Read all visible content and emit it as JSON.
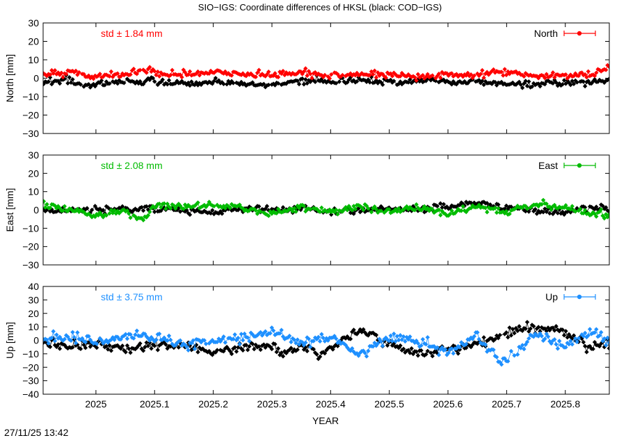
{
  "title": "SIO−IGS: Coordinate differences of HKSL (black: COD−IGS)",
  "timestamp": "27/11/25 13:42",
  "chart_data": {
    "type": "scatter",
    "title": "SIO−IGS: Coordinate differences of HKSL (black: COD−IGS)",
    "xlabel": "YEAR",
    "xlim": [
      2024.91,
      2025.875
    ],
    "xticks": [
      "2025",
      "2025.1",
      "2025.2",
      "2025.3",
      "2025.4",
      "2025.5",
      "2025.6",
      "2025.7",
      "2025.8"
    ],
    "reference_series_color": "#000000",
    "grid": false,
    "legend_position": "top-right",
    "panels": [
      {
        "component": "north",
        "ylabel": "North [mm]",
        "legend": "North",
        "color": "#ff0000",
        "std_label": "std ± 1.84 mm",
        "ylim": [
          -30,
          30
        ],
        "yticks": [
          "30",
          "20",
          "10",
          "0",
          "−10",
          "−20",
          "−30"
        ],
        "series": [
          {
            "x": [
              2024.912,
              2024.95,
              2025.0,
              2025.05,
              2025.08,
              2025.12,
              2025.2,
              2025.25,
              2025.3,
              2025.33,
              2025.4,
              2025.45,
              2025.5,
              2025.55,
              2025.6,
              2025.65,
              2025.69,
              2025.72,
              2025.8,
              2025.84,
              2025.873
            ],
            "y": [
              2,
              3,
              1,
              2,
              5,
              2,
              3,
              2,
              2,
              3,
              1,
              2,
              2,
              1,
              2,
              1,
              4,
              2,
              1,
              2,
              6
            ]
          },
          {
            "x": [
              2024.912,
              2024.95,
              2024.99,
              2025.04,
              2025.1,
              2025.15,
              2025.2,
              2025.25,
              2025.3,
              2025.35,
              2025.4,
              2025.45,
              2025.5,
              2025.55,
              2025.6,
              2025.65,
              2025.7,
              2025.75,
              2025.8,
              2025.84,
              2025.873
            ],
            "y": [
              -2,
              -1,
              -4,
              -2,
              -2,
              -3,
              -2,
              -3,
              -4,
              -1,
              -2,
              -1,
              -2,
              -1,
              -2,
              -2,
              -3,
              -3,
              -2,
              -2,
              -1
            ]
          }
        ]
      },
      {
        "component": "east",
        "ylabel": "East [mm]",
        "legend": "East",
        "color": "#00bb00",
        "std_label": "std ± 2.08 mm",
        "ylim": [
          -30,
          30
        ],
        "yticks": [
          "30",
          "20",
          "10",
          "0",
          "−10",
          "−20",
          "−30"
        ],
        "series": [
          {
            "x": [
              2024.912,
              2024.95,
              2025.0,
              2025.05,
              2025.08,
              2025.1,
              2025.15,
              2025.2,
              2025.25,
              2025.3,
              2025.35,
              2025.4,
              2025.45,
              2025.5,
              2025.55,
              2025.6,
              2025.65,
              2025.7,
              2025.75,
              2025.8,
              2025.84,
              2025.873
            ],
            "y": [
              3,
              1,
              -3,
              -1,
              -5,
              3,
              2,
              3,
              1,
              -2,
              2,
              -1,
              2,
              -1,
              1,
              -2,
              2,
              -1,
              3,
              1,
              -2,
              -3
            ]
          },
          {
            "x": [
              2024.912,
              2024.95,
              2025.0,
              2025.05,
              2025.1,
              2025.15,
              2025.2,
              2025.25,
              2025.3,
              2025.35,
              2025.4,
              2025.45,
              2025.5,
              2025.55,
              2025.6,
              2025.65,
              2025.7,
              2025.75,
              2025.8,
              2025.84,
              2025.873
            ],
            "y": [
              0,
              -1,
              1,
              0,
              1,
              0,
              -1,
              1,
              0,
              1,
              -1,
              0,
              1,
              0,
              2,
              4,
              1,
              0,
              -1,
              1,
              1
            ]
          }
        ]
      },
      {
        "component": "up",
        "ylabel": "Up [mm]",
        "legend": "Up",
        "color": "#1e90ff",
        "std_label": "std ± 3.75 mm",
        "ylim": [
          -40,
          40
        ],
        "yticks": [
          "40",
          "30",
          "20",
          "10",
          "0",
          "−10",
          "−20",
          "−30",
          "−40"
        ],
        "series": [
          {
            "x": [
              2024.912,
              2024.95,
              2025.0,
              2025.05,
              2025.1,
              2025.15,
              2025.2,
              2025.25,
              2025.3,
              2025.35,
              2025.4,
              2025.45,
              2025.5,
              2025.55,
              2025.6,
              2025.65,
              2025.69,
              2025.75,
              2025.8,
              2025.84,
              2025.873
            ],
            "y": [
              1,
              3,
              -2,
              4,
              2,
              -3,
              1,
              2,
              7,
              -2,
              3,
              -10,
              2,
              -1,
              -10,
              3,
              -17,
              4,
              -5,
              7,
              1
            ]
          },
          {
            "x": [
              2024.912,
              2024.95,
              2025.0,
              2025.05,
              2025.1,
              2025.15,
              2025.2,
              2025.25,
              2025.3,
              2025.32,
              2025.35,
              2025.38,
              2025.45,
              2025.5,
              2025.55,
              2025.6,
              2025.65,
              2025.72,
              2025.79,
              2025.84,
              2025.873
            ],
            "y": [
              -3,
              -4,
              -3,
              -6,
              -4,
              -3,
              -9,
              -5,
              -4,
              -11,
              -3,
              -11,
              8,
              -4,
              -10,
              -5,
              -3,
              9,
              8,
              -5,
              -2
            ]
          }
        ]
      }
    ]
  }
}
